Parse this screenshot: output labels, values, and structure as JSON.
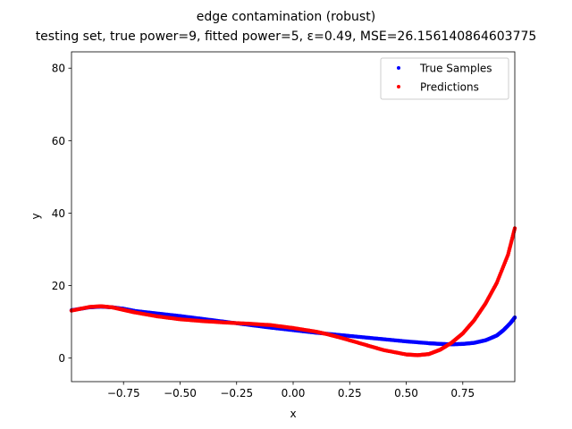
{
  "chart_data": {
    "type": "scatter",
    "title": "edge contamination (robust)",
    "subtitle": "testing set, true power=9, fitted power=5, ε=0.49, MSE=26.156140864603775",
    "xlabel": "x",
    "ylabel": "y",
    "xlim": [
      -0.98,
      0.98
    ],
    "ylim": [
      -6.5,
      84.5
    ],
    "xticks": [
      -0.75,
      -0.5,
      -0.25,
      0.0,
      0.25,
      0.5,
      0.75
    ],
    "xtick_labels": [
      "−0.75",
      "−0.50",
      "−0.25",
      "0.00",
      "0.25",
      "0.50",
      "0.75"
    ],
    "yticks": [
      0,
      20,
      40,
      60,
      80
    ],
    "ytick_labels": [
      "0",
      "20",
      "40",
      "60",
      "80"
    ],
    "grid": false,
    "legend_position": "top-right",
    "series": [
      {
        "name": "True Samples",
        "color": "#0000ff",
        "x": [
          -0.98,
          -0.9,
          -0.85,
          -0.8,
          -0.75,
          -0.7,
          -0.6,
          -0.5,
          -0.4,
          -0.3,
          -0.2,
          -0.1,
          0.0,
          0.1,
          0.2,
          0.3,
          0.4,
          0.5,
          0.6,
          0.65,
          0.7,
          0.75,
          0.8,
          0.85,
          0.9,
          0.93,
          0.96,
          0.98
        ],
        "y": [
          13.2,
          14.0,
          14.2,
          14.0,
          13.6,
          13.0,
          12.3,
          11.6,
          10.8,
          10.0,
          9.2,
          8.4,
          7.7,
          7.0,
          6.4,
          5.8,
          5.2,
          4.6,
          4.1,
          3.9,
          3.8,
          3.9,
          4.2,
          4.9,
          6.2,
          7.7,
          9.6,
          11.2
        ]
      },
      {
        "name": "Predictions",
        "color": "#ff0000",
        "x": [
          -0.98,
          -0.9,
          -0.85,
          -0.8,
          -0.75,
          -0.7,
          -0.6,
          -0.5,
          -0.4,
          -0.3,
          -0.2,
          -0.1,
          0.0,
          0.1,
          0.15,
          0.2,
          0.3,
          0.4,
          0.5,
          0.55,
          0.6,
          0.65,
          0.7,
          0.75,
          0.8,
          0.85,
          0.9,
          0.95,
          0.98
        ],
        "y": [
          13.1,
          14.1,
          14.3,
          14.0,
          13.3,
          12.6,
          11.5,
          10.7,
          10.2,
          9.8,
          9.5,
          9.1,
          8.3,
          7.3,
          6.6,
          5.8,
          4.0,
          2.2,
          1.0,
          0.8,
          1.1,
          2.3,
          4.2,
          6.8,
          10.4,
          15.0,
          20.7,
          28.5,
          35.8
        ]
      }
    ]
  }
}
